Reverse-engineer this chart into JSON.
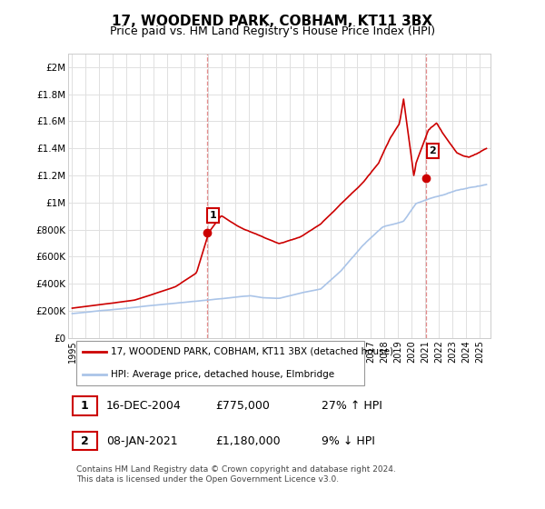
{
  "title": "17, WOODEND PARK, COBHAM, KT11 3BX",
  "subtitle": "Price paid vs. HM Land Registry's House Price Index (HPI)",
  "ylabel_ticks": [
    "£0",
    "£200K",
    "£400K",
    "£600K",
    "£800K",
    "£1M",
    "£1.2M",
    "£1.4M",
    "£1.6M",
    "£1.8M",
    "£2M"
  ],
  "ytick_values": [
    0,
    200000,
    400000,
    600000,
    800000,
    1000000,
    1200000,
    1400000,
    1600000,
    1800000,
    2000000
  ],
  "ylim": [
    0,
    2100000
  ],
  "xlim_start": 1994.7,
  "xlim_end": 2025.8,
  "hpi_color": "#aac4e8",
  "price_color": "#cc0000",
  "sale1_date": 2004.96,
  "sale1_price": 775000,
  "sale1_label": "1",
  "sale2_date": 2021.03,
  "sale2_price": 1180000,
  "sale2_label": "2",
  "legend_price_label": "17, WOODEND PARK, COBHAM, KT11 3BX (detached house)",
  "legend_hpi_label": "HPI: Average price, detached house, Elmbridge",
  "annotation1_date": "16-DEC-2004",
  "annotation1_price": "£775,000",
  "annotation1_hpi": "27% ↑ HPI",
  "annotation2_date": "08-JAN-2021",
  "annotation2_price": "£1,180,000",
  "annotation2_hpi": "9% ↓ HPI",
  "footer": "Contains HM Land Registry data © Crown copyright and database right 2024.\nThis data is licensed under the Open Government Licence v3.0.",
  "bg_color": "#ffffff",
  "grid_color": "#e0e0e0",
  "title_fontsize": 11,
  "subtitle_fontsize": 9
}
